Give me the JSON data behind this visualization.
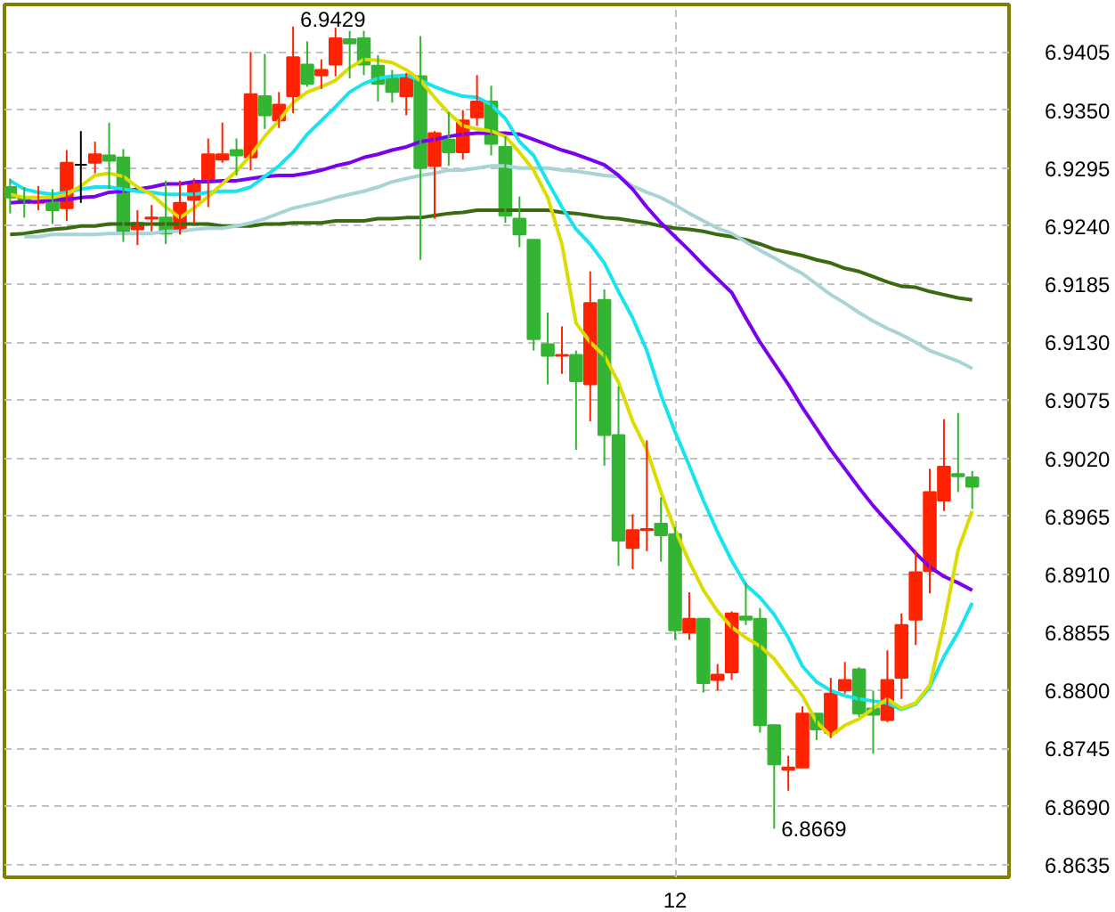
{
  "chart_data": {
    "type": "candlestick",
    "categories": [
      null,
      null,
      null,
      null,
      null,
      null,
      null,
      null,
      null,
      null,
      null,
      null,
      null,
      null,
      null,
      null,
      null,
      null,
      null,
      null,
      null,
      null,
      null,
      null,
      null,
      null,
      null,
      null,
      null,
      null,
      null,
      null,
      null,
      null,
      null,
      null,
      null,
      null,
      null,
      null,
      null,
      null,
      null,
      null,
      null,
      null,
      null,
      "12",
      null,
      null,
      null,
      null,
      null,
      null,
      null,
      null,
      null,
      null,
      null,
      null,
      null,
      null,
      null,
      null,
      null,
      null,
      null,
      null,
      null
    ],
    "ohlc": [
      [
        6.9277,
        6.9285,
        6.9252,
        6.9267
      ],
      [
        6.9267,
        6.9277,
        6.9248,
        6.9262
      ],
      [
        6.9262,
        6.9278,
        6.9255,
        6.9263
      ],
      [
        6.9267,
        6.9275,
        6.9242,
        6.9255
      ],
      [
        6.9257,
        6.9312,
        6.9245,
        6.93
      ],
      [
        6.9298,
        6.933,
        6.9262,
        6.9298
      ],
      [
        6.93,
        6.932,
        6.929,
        6.9308
      ],
      [
        6.9307,
        6.9338,
        6.9275,
        6.9302
      ],
      [
        6.9305,
        6.9313,
        6.9225,
        6.9235
      ],
      [
        6.9237,
        6.9255,
        6.9222,
        6.9243
      ],
      [
        6.9247,
        6.926,
        6.9235,
        6.9248
      ],
      [
        6.9248,
        6.9283,
        6.9223,
        6.9233
      ],
      [
        6.9235,
        6.9283,
        6.9232,
        6.9262
      ],
      [
        6.9265,
        6.9285,
        6.9242,
        6.928
      ],
      [
        6.9283,
        6.9323,
        6.9258,
        6.9308
      ],
      [
        6.9303,
        6.9338,
        6.93,
        6.9308
      ],
      [
        6.9312,
        6.9323,
        6.9288,
        6.9307
      ],
      [
        6.9305,
        6.9405,
        6.9293,
        6.9365
      ],
      [
        6.9363,
        6.9403,
        6.9332,
        6.9345
      ],
      [
        6.934,
        6.9367,
        6.9333,
        6.9355
      ],
      [
        6.9363,
        6.9429,
        6.9347,
        6.94
      ],
      [
        6.9393,
        6.9415,
        6.9372,
        6.9375
      ],
      [
        6.9383,
        6.9398,
        6.937,
        6.9388
      ],
      [
        6.9393,
        6.9428,
        6.9382,
        6.9418
      ],
      [
        6.9417,
        6.9425,
        6.938,
        6.9413
      ],
      [
        6.9418,
        6.9425,
        6.9383,
        6.9393
      ],
      [
        6.9392,
        6.9402,
        6.9358,
        6.9375
      ],
      [
        6.938,
        6.9388,
        6.9357,
        6.9367
      ],
      [
        6.9363,
        6.9385,
        6.9345,
        6.9383
      ],
      [
        6.9382,
        6.942,
        6.9208,
        6.9295
      ],
      [
        6.9297,
        6.933,
        6.9247,
        6.9328
      ],
      [
        6.9322,
        6.9348,
        6.9297,
        6.931
      ],
      [
        6.931,
        6.935,
        6.9303,
        6.934
      ],
      [
        6.9343,
        6.9383,
        6.9335,
        6.9358
      ],
      [
        6.9358,
        6.9373,
        6.9307,
        6.9318
      ],
      [
        6.9315,
        6.9325,
        6.9243,
        6.925
      ],
      [
        6.9247,
        6.9268,
        6.922,
        6.9232
      ],
      [
        6.9227,
        6.9227,
        6.9122,
        6.9133
      ],
      [
        6.9128,
        6.9158,
        6.909,
        6.9117
      ],
      [
        6.9117,
        6.9145,
        6.91,
        6.9118
      ],
      [
        6.9118,
        6.9122,
        6.9028,
        6.9093
      ],
      [
        6.909,
        6.9197,
        6.9055,
        6.9167
      ],
      [
        6.917,
        6.918,
        6.9013,
        6.9042
      ],
      [
        6.9042,
        6.9088,
        6.8918,
        6.8942
      ],
      [
        6.8935,
        6.8967,
        6.8915,
        6.8952
      ],
      [
        6.8952,
        6.9037,
        6.8932,
        6.8953
      ],
      [
        6.8958,
        6.8983,
        6.8922,
        6.8947
      ],
      [
        6.8948,
        6.8955,
        6.8848,
        6.8857
      ],
      [
        6.8855,
        6.8893,
        6.8848,
        6.8868
      ],
      [
        6.8868,
        6.8868,
        6.8798,
        6.8807
      ],
      [
        6.881,
        6.8825,
        6.88,
        6.8815
      ],
      [
        6.8817,
        6.8875,
        6.881,
        6.8873
      ],
      [
        6.887,
        6.8902,
        6.8862,
        6.8867
      ],
      [
        6.8868,
        6.8878,
        6.876,
        6.8767
      ],
      [
        6.8767,
        6.8768,
        6.8669,
        6.873
      ],
      [
        6.8725,
        6.8738,
        6.8705,
        6.8727
      ],
      [
        6.8727,
        6.8785,
        6.8727,
        6.8778
      ],
      [
        6.8778,
        6.8778,
        6.8753,
        6.8763
      ],
      [
        6.876,
        6.8812,
        6.8755,
        6.8797
      ],
      [
        6.88,
        6.8827,
        6.8797,
        6.881
      ],
      [
        6.882,
        6.8822,
        6.8775,
        6.8778
      ],
      [
        6.8783,
        6.88,
        6.874,
        6.8777
      ],
      [
        6.8772,
        6.8838,
        6.877,
        6.881
      ],
      [
        6.8812,
        6.8873,
        6.8792,
        6.8862
      ],
      [
        6.8867,
        6.8933,
        6.8843,
        6.8912
      ],
      [
        6.8913,
        6.901,
        6.8892,
        6.8988
      ],
      [
        6.898,
        6.9057,
        6.897,
        6.9012
      ],
      [
        6.9005,
        6.9063,
        6.8988,
        6.9003
      ],
      [
        6.9002,
        6.9008,
        6.8972,
        6.8993
      ]
    ],
    "colors": [
      "#33b533",
      "#33b533",
      "#ff2200",
      "#33b533",
      "#ff2200",
      "#000000",
      "#ff2200",
      "#33b533",
      "#33b533",
      "#ff2200",
      "#ff2200",
      "#33b533",
      "#ff2200",
      "#ff2200",
      "#ff2200",
      "#ff2200",
      "#33b533",
      "#ff2200",
      "#33b533",
      "#ff2200",
      "#ff2200",
      "#33b533",
      "#ff2200",
      "#ff2200",
      "#33b533",
      "#33b533",
      "#33b533",
      "#33b533",
      "#ff2200",
      "#33b533",
      "#ff2200",
      "#33b533",
      "#ff2200",
      "#ff2200",
      "#33b533",
      "#33b533",
      "#33b533",
      "#33b533",
      "#33b533",
      "#ff2200",
      "#33b533",
      "#ff2200",
      "#33b533",
      "#33b533",
      "#ff2200",
      "#ff2200",
      "#33b533",
      "#33b533",
      "#ff2200",
      "#33b533",
      "#ff2200",
      "#ff2200",
      "#33b533",
      "#33b533",
      "#33b533",
      "#ff2200",
      "#ff2200",
      "#33b533",
      "#ff2200",
      "#ff2200",
      "#33b533",
      "#33b533",
      "#ff2200",
      "#ff2200",
      "#ff2200",
      "#ff2200",
      "#ff2200",
      "#33b533",
      "#33b533"
    ],
    "series": [
      {
        "type": "line",
        "color": "#3a6b10",
        "values": [
          6.9232,
          6.9233,
          6.9235,
          6.9237,
          6.9238,
          6.924,
          6.924,
          6.9242,
          6.9242,
          6.9242,
          6.9242,
          6.9242,
          6.9242,
          6.9242,
          6.9242,
          6.924,
          6.924,
          6.924,
          6.9242,
          6.9242,
          6.9243,
          6.9243,
          6.9243,
          6.9245,
          6.9245,
          6.9245,
          6.9247,
          6.9247,
          6.9248,
          6.9248,
          6.925,
          6.9252,
          6.9253,
          6.9255,
          6.9255,
          6.9255,
          6.9255,
          6.9255,
          6.9255,
          6.9253,
          6.9252,
          6.925,
          6.9248,
          6.9247,
          6.9245,
          6.9243,
          6.924,
          6.9238,
          6.9237,
          6.9235,
          6.9232,
          6.923,
          6.9227,
          6.9223,
          6.9218,
          6.9215,
          6.9212,
          6.9208,
          6.9205,
          6.92,
          6.9197,
          6.9192,
          6.9187,
          6.9183,
          6.9182,
          6.9178,
          6.9175,
          6.9172,
          6.917
        ]
      },
      {
        "type": "line",
        "color": "#a8d4d6",
        "values": [
          null,
          6.923,
          6.923,
          6.9232,
          6.9232,
          6.9232,
          6.9232,
          6.9233,
          6.9233,
          6.9233,
          6.9233,
          6.9235,
          6.9235,
          6.9237,
          6.9238,
          6.9238,
          6.924,
          6.9243,
          6.9247,
          6.9252,
          6.9257,
          6.926,
          6.9263,
          6.9267,
          6.927,
          6.9273,
          6.9277,
          6.9282,
          6.9285,
          6.9288,
          6.929,
          6.9293,
          6.9293,
          6.9295,
          6.9297,
          6.9297,
          6.9295,
          6.9295,
          6.9295,
          6.9293,
          6.9292,
          6.929,
          6.9288,
          6.9287,
          6.9278,
          6.9272,
          6.9267,
          6.926,
          6.9252,
          6.9245,
          6.9238,
          6.9233,
          6.9225,
          6.9217,
          6.921,
          6.9202,
          6.9195,
          6.9185,
          6.9175,
          6.9167,
          6.9158,
          6.915,
          6.9143,
          6.9137,
          6.913,
          6.9122,
          6.9117,
          6.9112,
          6.9105
        ]
      },
      {
        "type": "line",
        "color": "#7a00f0",
        "values": [
          6.9262,
          6.9263,
          6.9263,
          6.9265,
          6.9265,
          6.9267,
          6.9268,
          6.9272,
          6.9273,
          6.9275,
          6.9277,
          6.928,
          6.928,
          6.9282,
          6.9282,
          6.9283,
          6.9283,
          6.9285,
          6.9287,
          6.9288,
          6.9288,
          6.929,
          6.9293,
          6.9297,
          6.93,
          6.9305,
          6.9308,
          6.9312,
          6.9315,
          6.932,
          6.9322,
          6.9325,
          6.9327,
          6.9328,
          6.9328,
          6.9328,
          6.9327,
          6.9322,
          6.9317,
          6.9312,
          6.9308,
          6.9303,
          6.9298,
          6.9288,
          6.9275,
          6.9258,
          6.9243,
          6.923,
          6.9217,
          6.9203,
          6.919,
          6.9177,
          6.9153,
          6.913,
          6.911,
          6.909,
          6.9068,
          6.9048,
          6.9028,
          6.901,
          6.8992,
          6.8975,
          6.896,
          6.8945,
          6.893,
          6.8917,
          6.8908,
          6.8902,
          6.8895
        ]
      },
      {
        "type": "line",
        "color": "#18e4f0",
        "values": [
          6.9283,
          6.9275,
          6.9272,
          6.927,
          6.9272,
          6.9275,
          6.9277,
          6.9277,
          6.9275,
          6.9273,
          6.9272,
          6.927,
          6.927,
          6.927,
          6.9272,
          6.9273,
          6.9273,
          6.9277,
          6.9287,
          6.9297,
          6.931,
          6.9327,
          6.934,
          6.9353,
          6.9367,
          6.9375,
          6.938,
          6.9382,
          6.9383,
          6.9378,
          6.9372,
          6.9367,
          6.9363,
          6.9362,
          6.9355,
          6.9342,
          6.932,
          6.9307,
          6.9282,
          6.9258,
          6.9237,
          6.9223,
          6.9205,
          6.9178,
          6.9153,
          6.9122,
          6.908,
          6.9045,
          6.9013,
          6.898,
          6.895,
          6.8923,
          6.89,
          6.8888,
          6.8872,
          6.885,
          6.8823,
          6.8808,
          6.88,
          6.8795,
          6.8792,
          6.879,
          6.8788,
          6.8782,
          6.8787,
          6.8803,
          6.8832,
          6.8855,
          6.8883
        ]
      },
      {
        "type": "line",
        "color": "#dcdc00",
        "values": [
          6.927,
          6.9267,
          6.9267,
          6.9267,
          6.927,
          6.9278,
          6.9288,
          6.929,
          6.9287,
          6.9277,
          6.927,
          6.9258,
          6.9248,
          6.9257,
          6.9268,
          6.928,
          6.9292,
          6.9307,
          6.9325,
          6.934,
          6.9357,
          6.9367,
          6.9372,
          6.9378,
          6.939,
          6.9398,
          6.9397,
          6.9395,
          6.9388,
          6.9378,
          6.9362,
          6.9347,
          6.9335,
          6.9332,
          6.933,
          6.9325,
          6.931,
          6.9293,
          6.9267,
          6.9223,
          6.9148,
          6.913,
          6.9117,
          6.9092,
          6.9055,
          6.9028,
          6.8988,
          6.8952,
          6.8922,
          6.8895,
          6.8875,
          6.886,
          6.885,
          6.8842,
          6.883,
          6.8812,
          6.8795,
          6.877,
          6.8757,
          6.8767,
          6.8773,
          6.8783,
          6.8792,
          6.8783,
          6.8788,
          6.8805,
          6.8863,
          6.8933,
          6.897
        ]
      }
    ],
    "ylim": [
      6.8623,
      6.945
    ],
    "yticks": [
      {
        "value": 6.8635,
        "label": "6.8635"
      },
      {
        "value": 6.869,
        "label": "6.8690"
      },
      {
        "value": 6.8745,
        "label": "6.8745"
      },
      {
        "value": 6.88,
        "label": "6.8800"
      },
      {
        "value": 6.8855,
        "label": "6.8855"
      },
      {
        "value": 6.891,
        "label": "6.8910"
      },
      {
        "value": 6.8965,
        "label": "6.8965"
      },
      {
        "value": 6.902,
        "label": "6.9020"
      },
      {
        "value": 6.9075,
        "label": "6.9075"
      },
      {
        "value": 6.913,
        "label": "6.9130"
      },
      {
        "value": 6.9185,
        "label": "6.9185"
      },
      {
        "value": 6.924,
        "label": "6.9240"
      },
      {
        "value": 6.9295,
        "label": "6.9295"
      },
      {
        "value": 6.935,
        "label": "6.9350"
      },
      {
        "value": 6.9405,
        "label": "6.9405"
      }
    ],
    "grid": true,
    "annotations": [
      "6.9429",
      "6.8669"
    ]
  }
}
